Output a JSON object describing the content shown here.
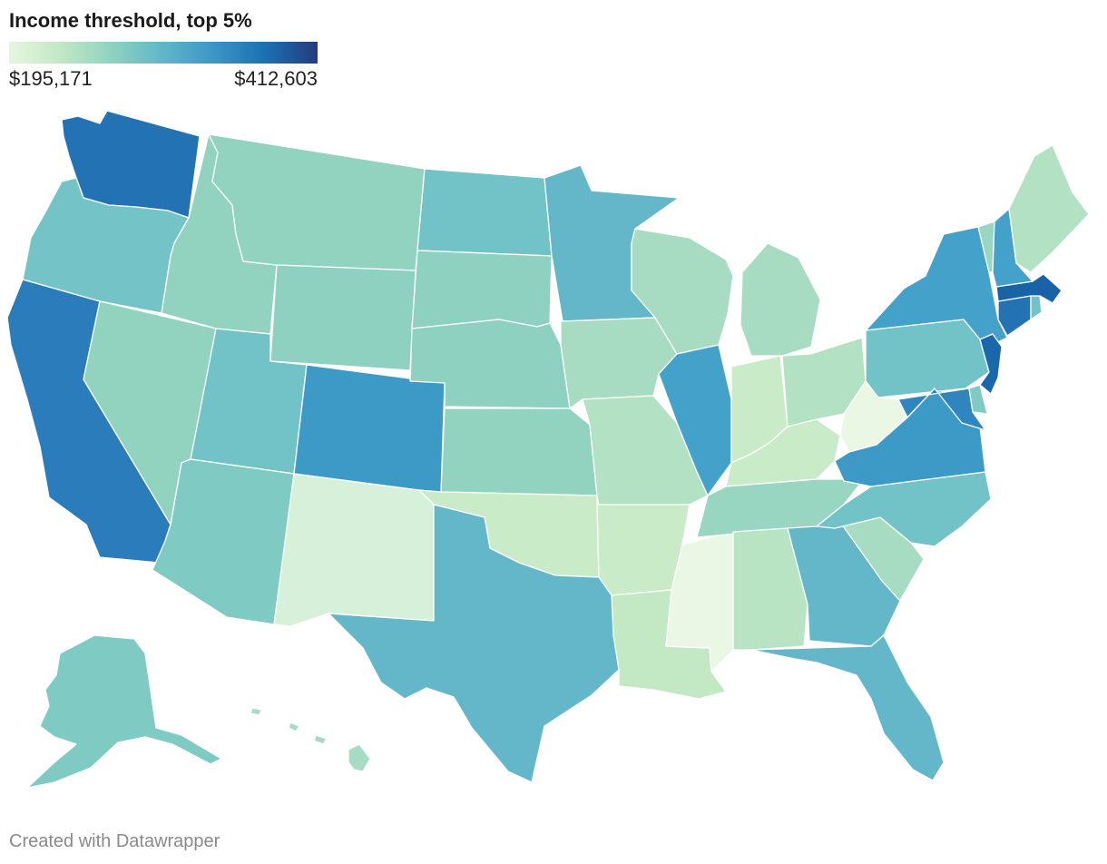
{
  "title": "Income threshold, top 5%",
  "legend": {
    "min_label": "$195,171",
    "max_label": "$412,603",
    "min_value": 195171,
    "max_value": 412603,
    "gradient_colors": [
      "#e6f5e0",
      "#c3e7c5",
      "#8ed2c0",
      "#5fb6c9",
      "#3a96c5",
      "#1a70b0",
      "#253b7e"
    ]
  },
  "footer": "Created with Datawrapper",
  "map_data": {
    "type": "choropleth",
    "measure": "Income threshold, top 5%",
    "regions": [
      {
        "id": "WA",
        "name": "Washington",
        "color": "#2373b4"
      },
      {
        "id": "OR",
        "name": "Oregon",
        "color": "#74c4c7"
      },
      {
        "id": "CA",
        "name": "California",
        "color": "#2a7dba"
      },
      {
        "id": "NV",
        "name": "Nevada",
        "color": "#92d3c0"
      },
      {
        "id": "ID",
        "name": "Idaho",
        "color": "#92d3c0"
      },
      {
        "id": "MT",
        "name": "Montana",
        "color": "#92d3c0"
      },
      {
        "id": "WY",
        "name": "Wyoming",
        "color": "#8fd1c1"
      },
      {
        "id": "UT",
        "name": "Utah",
        "color": "#72c3c8"
      },
      {
        "id": "AZ",
        "name": "Arizona",
        "color": "#80cac4"
      },
      {
        "id": "CO",
        "name": "Colorado",
        "color": "#3d9ac7"
      },
      {
        "id": "NM",
        "name": "New Mexico",
        "color": "#d7f0d9"
      },
      {
        "id": "ND",
        "name": "North Dakota",
        "color": "#72c3c8"
      },
      {
        "id": "SD",
        "name": "South Dakota",
        "color": "#8fd1c1"
      },
      {
        "id": "NE",
        "name": "Nebraska",
        "color": "#8fd1c1"
      },
      {
        "id": "KS",
        "name": "Kansas",
        "color": "#92d3c0"
      },
      {
        "id": "OK",
        "name": "Oklahoma",
        "color": "#c9ebc7"
      },
      {
        "id": "TX",
        "name": "Texas",
        "color": "#63b7c9"
      },
      {
        "id": "MN",
        "name": "Minnesota",
        "color": "#63b7c9"
      },
      {
        "id": "IA",
        "name": "Iowa",
        "color": "#a8dcc2"
      },
      {
        "id": "MO",
        "name": "Missouri",
        "color": "#b2e1c3"
      },
      {
        "id": "AR",
        "name": "Arkansas",
        "color": "#c9ebc7"
      },
      {
        "id": "LA",
        "name": "Louisiana",
        "color": "#c3e8c4"
      },
      {
        "id": "WI",
        "name": "Wisconsin",
        "color": "#a8dcc2"
      },
      {
        "id": "IL",
        "name": "Illinois",
        "color": "#44a1c9"
      },
      {
        "id": "MS",
        "name": "Mississippi",
        "color": "#ebf7e5"
      },
      {
        "id": "MI",
        "name": "Michigan",
        "color": "#a8dcc2"
      },
      {
        "id": "IN",
        "name": "Indiana",
        "color": "#c9ebc7"
      },
      {
        "id": "KY",
        "name": "Kentucky",
        "color": "#c9ebc7"
      },
      {
        "id": "TN",
        "name": "Tennessee",
        "color": "#98d6c1"
      },
      {
        "id": "AL",
        "name": "Alabama",
        "color": "#b9e4c4"
      },
      {
        "id": "OH",
        "name": "Ohio",
        "color": "#b2e1c3"
      },
      {
        "id": "WV",
        "name": "West Virginia",
        "color": "#ebf7e5"
      },
      {
        "id": "GA",
        "name": "Georgia",
        "color": "#63b7c9"
      },
      {
        "id": "FL",
        "name": "Florida",
        "color": "#63b7c9"
      },
      {
        "id": "SC",
        "name": "South Carolina",
        "color": "#a8dcc2"
      },
      {
        "id": "NC",
        "name": "North Carolina",
        "color": "#72c3c8"
      },
      {
        "id": "VA",
        "name": "Virginia",
        "color": "#3d9ac7"
      },
      {
        "id": "PA",
        "name": "Pennsylvania",
        "color": "#72c3c8"
      },
      {
        "id": "NY",
        "name": "New York",
        "color": "#44a1c9"
      },
      {
        "id": "MD",
        "name": "Maryland",
        "color": "#2f86bf"
      },
      {
        "id": "DE",
        "name": "Delaware",
        "color": "#80cac4"
      },
      {
        "id": "NJ",
        "name": "New Jersey",
        "color": "#1a67ab"
      },
      {
        "id": "CT",
        "name": "Connecticut",
        "color": "#2373b4"
      },
      {
        "id": "RI",
        "name": "Rhode Island",
        "color": "#72c3c8"
      },
      {
        "id": "MA",
        "name": "Massachusetts",
        "color": "#1a62a6"
      },
      {
        "id": "VT",
        "name": "Vermont",
        "color": "#98d6c1"
      },
      {
        "id": "NH",
        "name": "New Hampshire",
        "color": "#44a1c9"
      },
      {
        "id": "ME",
        "name": "Maine",
        "color": "#b2e1c3"
      },
      {
        "id": "AK",
        "name": "Alaska",
        "color": "#80cac4"
      },
      {
        "id": "HI",
        "name": "Hawaii",
        "color": "#a8dcc2"
      }
    ]
  }
}
